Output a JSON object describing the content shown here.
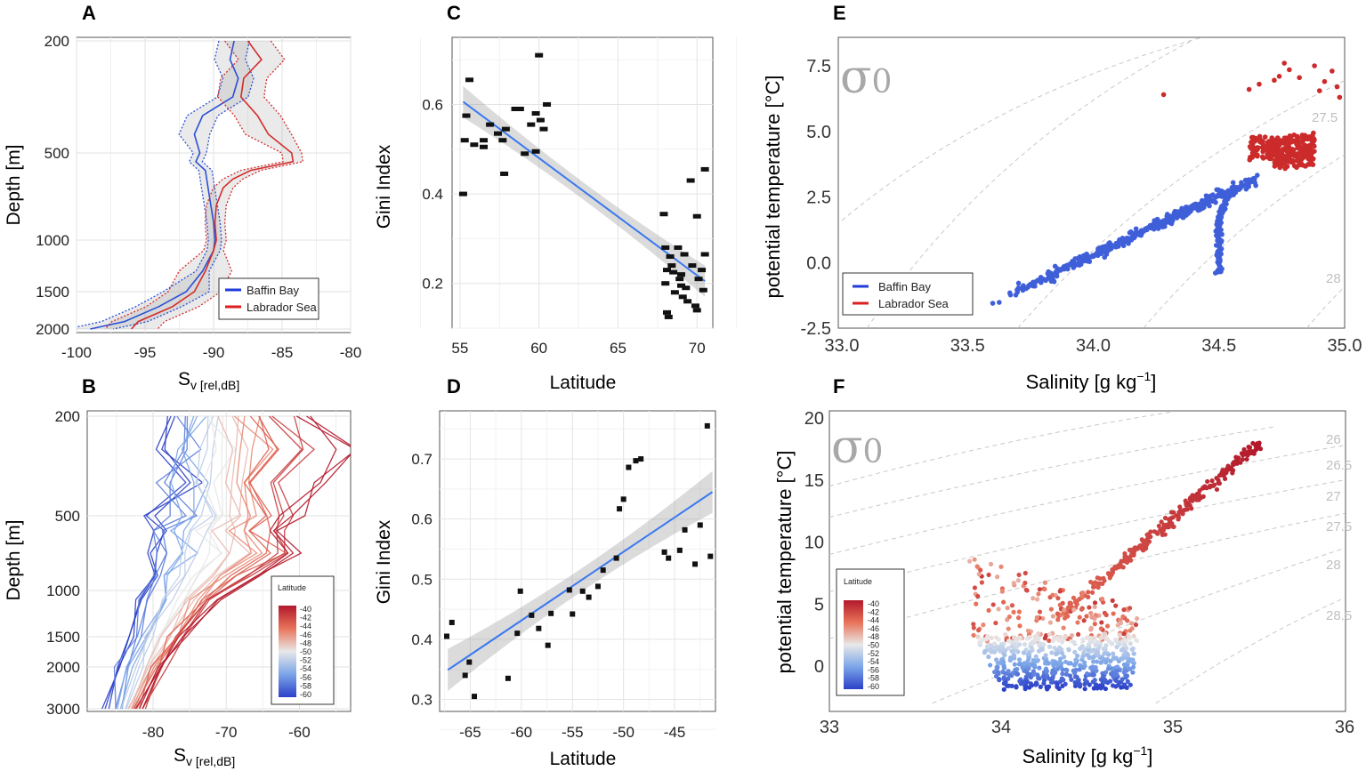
{
  "panels": {
    "A": {
      "label": "A"
    },
    "B": {
      "label": "B"
    },
    "C": {
      "label": "C"
    },
    "D": {
      "label": "D"
    },
    "E": {
      "label": "E"
    },
    "F": {
      "label": "F"
    }
  },
  "chart_data": [
    {
      "id": "A",
      "type": "line",
      "title": "",
      "xlabel": "S",
      "xlabel_sub": "v [rel,dB]",
      "ylabel": "Depth [m]",
      "xlim": [
        -100,
        -80
      ],
      "ylim_top": 200,
      "ylim_bottom": 2000,
      "xticks": [
        "-100",
        "-95",
        "-90",
        "-85",
        "-80"
      ],
      "yticks": [
        "200",
        "500",
        "1000",
        "1500",
        "2000"
      ],
      "legend": {
        "position": "bottom-right",
        "entries": [
          "Baffin Bay",
          "Labrador Sea"
        ]
      },
      "series": [
        {
          "name": "Baffin Bay",
          "color": "#2a4fd6",
          "points": [
            [
              -88.5,
              200
            ],
            [
              -88.8,
              250
            ],
            [
              -88.2,
              300
            ],
            [
              -88.6,
              350
            ],
            [
              -90.8,
              400
            ],
            [
              -91.4,
              450
            ],
            [
              -91.0,
              500
            ],
            [
              -91.3,
              550
            ],
            [
              -90.6,
              600
            ],
            [
              -90.4,
              700
            ],
            [
              -90.2,
              800
            ],
            [
              -90.0,
              900
            ],
            [
              -89.9,
              1000
            ],
            [
              -90.0,
              1100
            ],
            [
              -90.8,
              1300
            ],
            [
              -92.0,
              1500
            ],
            [
              -94.0,
              1700
            ],
            [
              -96.5,
              1900
            ],
            [
              -99.0,
              2000
            ]
          ]
        },
        {
          "name": "Labrador Sea",
          "color": "#d42b2b",
          "points": [
            [
              -87.5,
              200
            ],
            [
              -86.5,
              250
            ],
            [
              -87.8,
              300
            ],
            [
              -88.0,
              350
            ],
            [
              -86.8,
              400
            ],
            [
              -86.0,
              450
            ],
            [
              -84.3,
              500
            ],
            [
              -84.2,
              550
            ],
            [
              -87.3,
              600
            ],
            [
              -88.6,
              650
            ],
            [
              -89.3,
              700
            ],
            [
              -89.8,
              800
            ],
            [
              -89.9,
              900
            ],
            [
              -89.8,
              1000
            ],
            [
              -90.0,
              1100
            ],
            [
              -90.6,
              1300
            ],
            [
              -91.4,
              1500
            ],
            [
              -93.0,
              1700
            ],
            [
              -95.5,
              1900
            ],
            [
              -96.0,
              2000
            ]
          ]
        }
      ]
    },
    {
      "id": "B",
      "type": "line",
      "xlabel": "S",
      "xlabel_sub": "v [rel,dB]",
      "ylabel": "Depth [m]",
      "xlim": [
        -89,
        -53
      ],
      "ylim_top": 200,
      "ylim_bottom": 3000,
      "xticks": [
        "-80",
        "-70",
        "-60"
      ],
      "yticks": [
        "200",
        "500",
        "1000",
        "1500",
        "2000",
        "3000"
      ],
      "legend": {
        "title": "Latitude",
        "position": "bottom-right",
        "ticks": [
          "-40",
          "-42",
          "-44",
          "-46",
          "-48",
          "-50",
          "-52",
          "-54",
          "-56",
          "-58",
          "-60"
        ]
      },
      "series_summary": "profiles colored by latitude from -60 (blue) to -40 (red); deeper mixing toward lower Sv at depth",
      "series": [
        {
          "lat": -60,
          "x": [
            -77,
            -79,
            -76,
            -80,
            -78,
            -81,
            -80,
            -82,
            -83,
            -85,
            -86
          ]
        },
        {
          "lat": -57,
          "x": [
            -76,
            -75,
            -78,
            -77,
            -79,
            -78,
            -80,
            -81,
            -82,
            -84,
            -85
          ]
        },
        {
          "lat": -55,
          "x": [
            -74,
            -77,
            -75,
            -76,
            -77,
            -76,
            -78,
            -79,
            -81,
            -83,
            -84
          ]
        },
        {
          "lat": -52,
          "x": [
            -72,
            -73,
            -74,
            -73,
            -75,
            -74,
            -76,
            -78,
            -80,
            -82,
            -84
          ]
        },
        {
          "lat": -50,
          "x": [
            -71,
            -70,
            -72,
            -72,
            -73,
            -71,
            -74,
            -76,
            -79,
            -81,
            -83
          ]
        },
        {
          "lat": -48,
          "x": [
            -69,
            -68,
            -70,
            -68,
            -70,
            -68,
            -72,
            -75,
            -78,
            -81,
            -83
          ]
        },
        {
          "lat": -46,
          "x": [
            -67,
            -66,
            -69,
            -66,
            -68,
            -65,
            -70,
            -74,
            -77,
            -80,
            -82
          ]
        },
        {
          "lat": -44,
          "x": [
            -66,
            -63,
            -67,
            -64,
            -66,
            -64,
            -69,
            -73,
            -77,
            -80,
            -82
          ]
        },
        {
          "lat": -42,
          "x": [
            -63,
            -60,
            -64,
            -62,
            -64,
            -62,
            -67,
            -72,
            -76,
            -79,
            -81
          ]
        },
        {
          "lat": -40,
          "x": [
            -60,
            -53,
            -58,
            -61,
            -63,
            -61,
            -66,
            -71,
            -76,
            -79,
            -82
          ]
        }
      ],
      "depths": [
        200,
        300,
        400,
        500,
        600,
        750,
        900,
        1100,
        1500,
        2000,
        3000
      ]
    },
    {
      "id": "C",
      "type": "scatter",
      "xlabel": "Latitude",
      "ylabel": "Gini Index",
      "xlim": [
        54.5,
        71
      ],
      "ylim": [
        0.1,
        0.75
      ],
      "xticks": [
        "55",
        "60",
        "65",
        "70"
      ],
      "yticks": [
        "0.2",
        "0.4",
        "0.6"
      ],
      "fit": {
        "x0": 55.2,
        "y0": 0.606,
        "x1": 70.5,
        "y1": 0.205,
        "ci_half_width": 0.035
      },
      "points": [
        [
          55.2,
          0.4
        ],
        [
          55.3,
          0.52
        ],
        [
          55.4,
          0.575
        ],
        [
          55.6,
          0.655
        ],
        [
          55.9,
          0.51
        ],
        [
          56.5,
          0.52
        ],
        [
          56.5,
          0.505
        ],
        [
          56.9,
          0.555
        ],
        [
          57.4,
          0.535
        ],
        [
          57.7,
          0.52
        ],
        [
          57.8,
          0.445
        ],
        [
          57.9,
          0.545
        ],
        [
          58.5,
          0.59
        ],
        [
          58.8,
          0.59
        ],
        [
          59.1,
          0.49
        ],
        [
          59.5,
          0.555
        ],
        [
          59.8,
          0.495
        ],
        [
          59.8,
          0.58
        ],
        [
          60.0,
          0.71
        ],
        [
          60.1,
          0.565
        ],
        [
          60.3,
          0.545
        ],
        [
          60.5,
          0.6
        ],
        [
          67.9,
          0.355
        ],
        [
          68.0,
          0.28
        ],
        [
          68.1,
          0.23
        ],
        [
          68.0,
          0.2
        ],
        [
          68.1,
          0.135
        ],
        [
          68.2,
          0.125
        ],
        [
          68.3,
          0.26
        ],
        [
          68.4,
          0.24
        ],
        [
          68.5,
          0.225
        ],
        [
          68.6,
          0.18
        ],
        [
          68.8,
          0.28
        ],
        [
          68.9,
          0.21
        ],
        [
          69.0,
          0.195
        ],
        [
          69.1,
          0.17
        ],
        [
          69.2,
          0.265
        ],
        [
          69.3,
          0.19
        ],
        [
          69.4,
          0.16
        ],
        [
          69.6,
          0.43
        ],
        [
          69.7,
          0.24
        ],
        [
          69.9,
          0.15
        ],
        [
          70.0,
          0.35
        ],
        [
          70.1,
          0.21
        ],
        [
          70.3,
          0.23
        ],
        [
          70.4,
          0.185
        ],
        [
          70.5,
          0.265
        ],
        [
          70.5,
          0.455
        ],
        [
          70.0,
          0.14
        ],
        [
          69.0,
          0.22
        ]
      ]
    },
    {
      "id": "D",
      "type": "scatter",
      "xlabel": "Latitude",
      "ylabel": "Gini Index",
      "xlim": [
        -68,
        -41
      ],
      "ylim": [
        0.28,
        0.78
      ],
      "xticks": [
        "-65",
        "-60",
        "-55",
        "-50",
        "-45"
      ],
      "yticks": [
        "0.3",
        "0.4",
        "0.5",
        "0.6",
        "0.7"
      ],
      "fit": {
        "x0": -67.2,
        "y0": 0.349,
        "x1": -41.3,
        "y1": 0.645,
        "ci_half_width": 0.035
      },
      "points": [
        [
          -67.3,
          0.405
        ],
        [
          -66.8,
          0.428
        ],
        [
          -65.5,
          0.34
        ],
        [
          -65.1,
          0.362
        ],
        [
          -64.6,
          0.305
        ],
        [
          -61.3,
          0.335
        ],
        [
          -60.4,
          0.41
        ],
        [
          -60.1,
          0.48
        ],
        [
          -59.0,
          0.44
        ],
        [
          -58.3,
          0.418
        ],
        [
          -57.4,
          0.39
        ],
        [
          -57.1,
          0.443
        ],
        [
          -55.3,
          0.482
        ],
        [
          -55.0,
          0.442
        ],
        [
          -54.0,
          0.48
        ],
        [
          -53.4,
          0.47
        ],
        [
          -52.5,
          0.488
        ],
        [
          -52.0,
          0.515
        ],
        [
          -50.7,
          0.535
        ],
        [
          -50.4,
          0.617
        ],
        [
          -50.0,
          0.633
        ],
        [
          -49.5,
          0.686
        ],
        [
          -48.8,
          0.697
        ],
        [
          -48.3,
          0.7
        ],
        [
          -46.0,
          0.545
        ],
        [
          -45.6,
          0.535
        ],
        [
          -44.5,
          0.548
        ],
        [
          -44.0,
          0.582
        ],
        [
          -43.0,
          0.525
        ],
        [
          -42.5,
          0.59
        ],
        [
          -41.8,
          0.755
        ],
        [
          -41.5,
          0.538
        ]
      ]
    },
    {
      "id": "E",
      "type": "scatter",
      "xlabel": "Salinity [g kg",
      "xlabel_sup": "−1",
      "xlabel_end": "]",
      "ylabel": "potential temperature [°C]",
      "xlim": [
        33,
        35
      ],
      "ylim": [
        -2.5,
        8.3
      ],
      "xticks": [
        "33.0",
        "33.5",
        "34.0",
        "34.5",
        "35.0"
      ],
      "yticks": [
        "-2.5",
        "0.0",
        "2.5",
        "5.0",
        "7.5"
      ],
      "annotation": "σ",
      "annotation_sub": "0",
      "isopycnals": [
        "27.5",
        "28"
      ],
      "legend": {
        "position": "bottom-left",
        "entries": [
          "Baffin Bay",
          "Labrador Sea"
        ]
      },
      "series": [
        {
          "name": "Baffin Bay",
          "color": "#4466dd"
        },
        {
          "name": "Labrador Sea",
          "color": "#cc2b2b"
        }
      ]
    },
    {
      "id": "F",
      "type": "scatter",
      "xlabel": "Salinity [g kg",
      "xlabel_sup": "−1",
      "xlabel_end": "]",
      "ylabel": "potential temperature [°C]",
      "xlim": [
        33,
        36
      ],
      "ylim": [
        -3,
        20
      ],
      "xticks": [
        "33",
        "34",
        "35",
        "36"
      ],
      "yticks": [
        "0",
        "5",
        "10",
        "15",
        "20"
      ],
      "annotation": "σ",
      "annotation_sub": "0",
      "isopycnals": [
        "26",
        "26.5",
        "27",
        "27.5",
        "28",
        "28.5"
      ],
      "legend": {
        "title": "Latitude",
        "position": "bottom-left",
        "ticks": [
          "-40",
          "-42",
          "-44",
          "-46",
          "-48",
          "-50",
          "-52",
          "-54",
          "-56",
          "-58",
          "-60"
        ]
      }
    }
  ]
}
